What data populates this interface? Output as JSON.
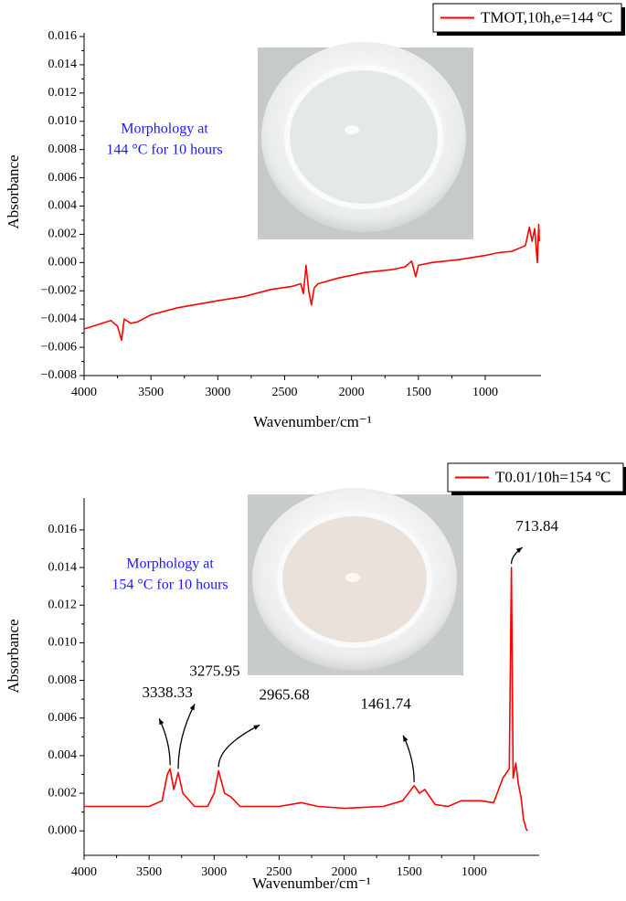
{
  "chart_data": [
    {
      "type": "line",
      "x_label": "Wavenumber/cm⁻¹",
      "y_label": "Absorbance",
      "annotation": [
        "Morphology at",
        "144 °C for 10 hours"
      ],
      "xlim": [
        4000,
        583
      ],
      "ylim": [
        -0.008,
        0.016
      ],
      "xticks": [
        4000,
        3500,
        3000,
        2500,
        2000,
        1500,
        1000
      ],
      "yticks": [
        {
          "value": -0.008,
          "label": "−0.008"
        },
        {
          "value": -0.006,
          "label": "−0.006"
        },
        {
          "value": -0.004,
          "label": "−0.004"
        },
        {
          "value": -0.002,
          "label": "−0.002"
        },
        {
          "value": 0,
          "label": "0.000"
        },
        0.002,
        0.004,
        0.006,
        0.008,
        {
          "value": 0.01,
          "label": "0.010"
        },
        0.012,
        0.014,
        0.016
      ],
      "x": [
        4000,
        3900,
        3800,
        3750,
        3720,
        3700,
        3650,
        3600,
        3500,
        3300,
        3000,
        2800,
        2600,
        2450,
        2380,
        2360,
        2340,
        2320,
        2300,
        2280,
        2250,
        2100,
        1900,
        1700,
        1600,
        1550,
        1520,
        1500,
        1400,
        1200,
        1000,
        900,
        800,
        700,
        670,
        650,
        630,
        610,
        600,
        595
      ],
      "series": [
        {
          "name": "TMOT,10h,e=144 ºC",
          "color": "#ff0000",
          "values": [
            -0.0047,
            -0.0044,
            -0.0041,
            -0.0045,
            -0.0055,
            -0.004,
            -0.0043,
            -0.0042,
            -0.0037,
            -0.0032,
            -0.0027,
            -0.0024,
            -0.0019,
            -0.0017,
            -0.0015,
            -0.0022,
            -0.0002,
            -0.002,
            -0.003,
            -0.0018,
            -0.0015,
            -0.0011,
            -0.0007,
            -0.0005,
            -0.0003,
            0.0001,
            -0.001,
            -0.0002,
            0,
            0.0002,
            0.0005,
            0.0007,
            0.0008,
            0.0012,
            0.0025,
            0.0015,
            0.0024,
            0,
            0.0027,
            0.0015
          ]
        }
      ]
    },
    {
      "type": "line",
      "x_label": "Wavenumber/cm⁻¹",
      "y_label": "Absorbance",
      "annotation": [
        "Morphology at",
        "154 °C for 10 hours"
      ],
      "xlim": [
        4000,
        500
      ],
      "ylim": [
        -0.0013,
        0.0175
      ],
      "xticks": [
        4000,
        3500,
        3000,
        2500,
        2000,
        1500,
        1000
      ],
      "yticks": [
        {
          "value": 0,
          "label": "0.000"
        },
        0.002,
        0.004,
        0.006,
        0.008,
        {
          "value": 0.01,
          "label": "0.010"
        },
        0.012,
        0.014,
        0.016
      ],
      "x": [
        4000,
        3800,
        3500,
        3400,
        3360,
        3338.33,
        3310,
        3275.95,
        3240,
        3150,
        3050,
        3000,
        2965.68,
        2920,
        2870,
        2800,
        2500,
        2330,
        2200,
        2000,
        1700,
        1550,
        1461.74,
        1420,
        1380,
        1300,
        1200,
        1100,
        950,
        850,
        780,
        730,
        713.84,
        700,
        680,
        660,
        640,
        620,
        600,
        590
      ],
      "series": [
        {
          "name": "T0.01/10h=154 ºC",
          "color": "#ff0000",
          "values": [
            0.0013,
            0.0013,
            0.0013,
            0.0016,
            0.003,
            0.0033,
            0.0022,
            0.0031,
            0.002,
            0.0013,
            0.0013,
            0.002,
            0.0032,
            0.002,
            0.0018,
            0.0013,
            0.0013,
            0.0015,
            0.0013,
            0.0012,
            0.0013,
            0.0016,
            0.0024,
            0.002,
            0.0022,
            0.0014,
            0.0013,
            0.0016,
            0.0016,
            0.0015,
            0.0028,
            0.0033,
            0.014,
            0.0028,
            0.0036,
            0.0025,
            0.0018,
            0.0006,
            0.0001,
            0
          ]
        }
      ],
      "peaks": {
        "x": [
          3338.33,
          3275.95,
          2965.68,
          1461.74,
          713.84
        ],
        "values": [
          0.0033,
          0.0031,
          0.0032,
          0.0024,
          0.014
        ]
      }
    }
  ]
}
